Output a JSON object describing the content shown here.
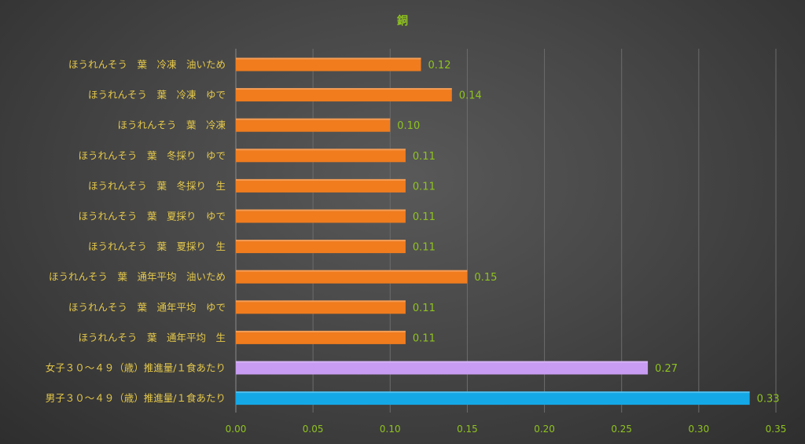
{
  "chart_data": {
    "type": "bar",
    "orientation": "horizontal",
    "title": "銅",
    "xlabel": "",
    "ylabel": "",
    "xlim": [
      0,
      0.35
    ],
    "x_ticks": [
      "0.00",
      "0.05",
      "0.10",
      "0.15",
      "0.20",
      "0.25",
      "0.30",
      "0.35"
    ],
    "grid": true,
    "categories": [
      "ほうれんそう　葉　冷凍　油いため",
      "ほうれんそう　葉　冷凍　ゆで",
      "ほうれんそう　葉　冷凍",
      "ほうれんそう　葉　冬採り　ゆで",
      "ほうれんそう　葉　冬採り　生",
      "ほうれんそう　葉　夏採り　ゆで",
      "ほうれんそう　葉　夏採り　生",
      "ほうれんそう　葉　通年平均　油いため",
      "ほうれんそう　葉　通年平均　ゆで",
      "ほうれんそう　葉　通年平均　生",
      "女子３０～４９（歳）推進量/１食あたり",
      "男子３０～４９（歳）推進量/１食あたり"
    ],
    "values": [
      0.12,
      0.14,
      0.1,
      0.11,
      0.11,
      0.11,
      0.11,
      0.15,
      0.11,
      0.11,
      0.267,
      0.333
    ],
    "data_labels": [
      "0.12",
      "0.14",
      "0.10",
      "0.11",
      "0.11",
      "0.11",
      "0.11",
      "0.15",
      "0.11",
      "0.11",
      "0.27",
      "0.33"
    ],
    "bar_colors": [
      "#f07c1e",
      "#f07c1e",
      "#f07c1e",
      "#f07c1e",
      "#f07c1e",
      "#f07c1e",
      "#f07c1e",
      "#f07c1e",
      "#f07c1e",
      "#f07c1e",
      "#c89cf2",
      "#14a8e6"
    ]
  }
}
